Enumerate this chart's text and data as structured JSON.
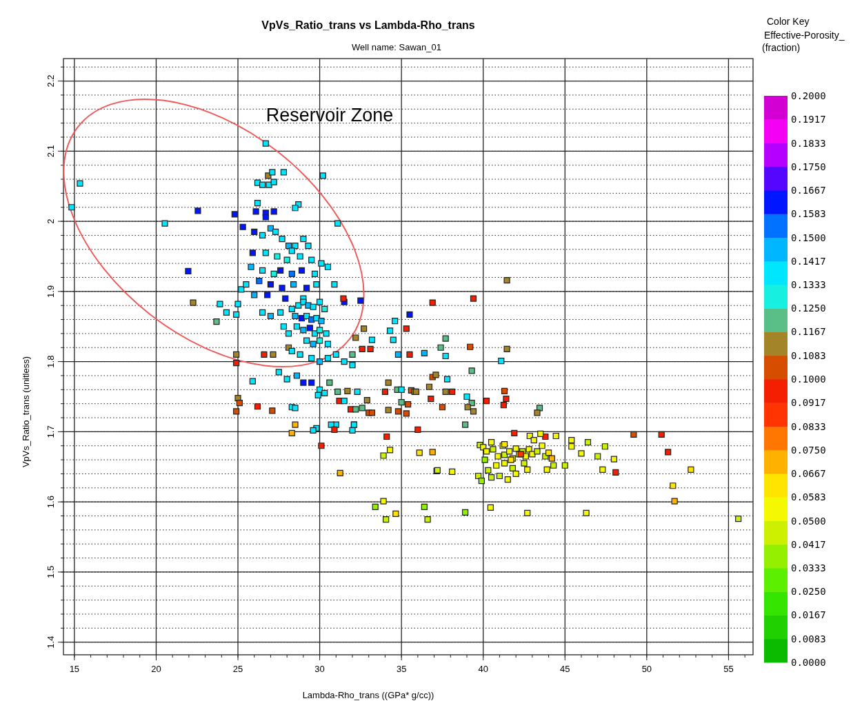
{
  "chart_data": {
    "type": "scatter",
    "title": "VpVs_Ratio_trans vs Lambda-Rho_trans",
    "subtitle": "Well name: Sawan_01",
    "xlabel": "Lambda-Rho_trans ((GPa* g/cc))",
    "ylabel": "VpVs_Ratio_trans (unitless)",
    "legend_title": "Color Key",
    "clabel": "Effective-Porosity_ (fraction)",
    "annotations": [
      "Reservoir Zone"
    ],
    "marker": "square",
    "grid": true,
    "xlim": [
      14.33,
      56.5
    ],
    "xticks": [
      15,
      20,
      25,
      30,
      35,
      40,
      45,
      50,
      55
    ],
    "ylim": [
      1.382,
      2.232
    ],
    "yticks": [
      1.4,
      1.5,
      1.6,
      1.7,
      1.8,
      1.9,
      2,
      2.1,
      2.2
    ],
    "clim": [
      0,
      0.2
    ],
    "cticks": [
      {
        "value": 0,
        "label": "0.0000"
      },
      {
        "value": 0.00833,
        "label": "0.0083"
      },
      {
        "value": 0.01667,
        "label": "0.0167"
      },
      {
        "value": 0.025,
        "label": "0.0250"
      },
      {
        "value": 0.03333,
        "label": "0.0333"
      },
      {
        "value": 0.04167,
        "label": "0.0417"
      },
      {
        "value": 0.05,
        "label": "0.0500"
      },
      {
        "value": 0.05833,
        "label": "0.0583"
      },
      {
        "value": 0.06667,
        "label": "0.0667"
      },
      {
        "value": 0.075,
        "label": "0.0750"
      },
      {
        "value": 0.08333,
        "label": "0.0833"
      },
      {
        "value": 0.09167,
        "label": "0.0917"
      },
      {
        "value": 0.1,
        "label": "0.1000"
      },
      {
        "value": 0.10833,
        "label": "0.1083"
      },
      {
        "value": 0.11667,
        "label": "0.1167"
      },
      {
        "value": 0.125,
        "label": "0.1250"
      },
      {
        "value": 0.13333,
        "label": "0.1333"
      },
      {
        "value": 0.14167,
        "label": "0.1417"
      },
      {
        "value": 0.15,
        "label": "0.1500"
      },
      {
        "value": 0.15833,
        "label": "0.1583"
      },
      {
        "value": 0.16667,
        "label": "0.1667"
      },
      {
        "value": 0.175,
        "label": "0.1750"
      },
      {
        "value": 0.18333,
        "label": "0.1833"
      },
      {
        "value": 0.19167,
        "label": "0.1917"
      },
      {
        "value": 0.2,
        "label": "0.2000"
      }
    ],
    "series": [
      {
        "x": [
          14.83,
          15.34,
          20.53,
          22.55,
          21.96,
          22.26,
          23.69,
          23.9,
          24.3,
          24.9,
          25.0,
          25.2,
          24.9,
          24.9,
          25.0,
          25.1,
          24.9,
          25.9,
          26.2,
          26.7,
          26.85,
          27.1,
          27.8,
          26.2,
          26.5,
          26.9,
          27.2,
          30.2,
          26.2,
          28.7,
          28.5,
          24.8,
          26.7,
          26.7,
          26.1,
          27.2,
          31.1,
          25.3,
          26.0,
          26.5,
          27.0,
          27.3,
          27.7,
          28.1,
          28.5,
          29.0,
          29.3,
          28.3,
          25.9,
          26.7,
          27.4,
          28.0,
          28.8,
          29.5,
          30.1,
          25.8,
          26.5,
          27.2,
          27.6,
          28.3,
          28.9,
          29.7,
          30.5,
          25.5,
          26.3,
          27.0,
          27.7,
          28.4,
          29.2,
          29.8,
          30.9,
          26.0,
          26.8,
          27.9,
          29.0,
          31.5,
          28.3,
          28.7,
          29.0,
          29.3,
          29.6,
          30.0,
          30.3,
          28.5,
          28.9,
          29.2,
          29.5,
          29.8,
          30.1,
          28.6,
          29.0,
          29.4,
          29.7,
          30.0,
          30.4,
          29.2,
          29.6,
          30.0,
          30.5,
          27.6,
          27.0,
          26.5,
          27.8,
          28.1,
          28.1,
          28.3,
          28.8,
          29.5,
          30.0,
          30.5,
          31.0,
          31.5,
          32.0,
          27.5,
          28.0,
          28.6,
          29.0,
          29.5,
          30.0,
          30.3,
          28.3,
          29.8,
          31.0,
          32.1,
          29.9,
          31.45,
          39.4,
          36.9,
          32.5,
          35.5,
          35.3,
          32.7,
          32.2,
          34.6,
          34.3,
          33.2,
          34.5,
          37.7,
          37.4,
          39.2,
          35.5,
          34.8,
          36.4,
          37.7,
          33.1,
          32.6,
          32.0,
          26.6,
          27.15,
          39.3,
          37.8,
          36.9,
          37.1,
          36.7,
          38.1,
          37.7,
          36.8,
          37.5,
          39.0,
          39.3,
          39.4,
          39.05,
          38.9,
          40.2,
          34.0,
          34.75,
          35.0,
          35.6,
          35.8,
          35.9,
          34.2,
          35.0,
          35.4,
          34.8,
          35.3,
          34.2,
          33.0,
          33.2,
          31.9,
          32.2,
          32.6,
          32.9,
          31.7,
          32.3,
          31.2,
          31.5,
          31.1,
          30.6,
          28.5,
          27.1,
          28.5,
          28.3,
          29.6,
          30.7,
          30.9,
          32.0,
          32.1,
          30.1,
          34.1,
          36.0,
          34.3,
          33.9,
          36.1,
          36.9,
          31.25,
          37.15,
          38.1,
          41.45,
          41.45,
          41.1,
          41.3,
          41.4,
          41.25,
          43.45,
          43.3,
          41.9,
          43.8,
          49.2,
          50.9,
          51.3,
          48.1,
          52.7,
          51.6,
          51.7,
          55.6,
          47.3,
          48.0,
          47.45,
          47.0,
          46.4,
          46.0,
          45.4,
          45.4,
          44.45,
          45.0,
          43.9,
          42.7,
          43.5,
          42.85,
          43.1,
          36.4,
          36.6,
          38.9,
          40.45,
          42.7,
          46.3,
          33.4,
          33.9,
          34.65,
          34.05,
          39.7,
          39.8,
          37.2,
          40.0,
          40.2,
          40.6,
          40.9,
          41.2,
          41.3,
          41.6,
          41.8,
          42.0,
          42.2,
          42.4,
          42.6,
          42.8,
          43.0,
          43.3,
          43.6,
          43.8,
          44.0,
          44.2,
          44.3,
          40.3,
          40.8,
          41.3,
          41.8,
          42.0,
          42.5,
          40.5,
          41.0,
          41.5,
          41.7,
          41.3,
          42.3,
          40.1,
          39.9,
          40.5
        ],
        "values": [
          2.02,
          2.054,
          1.997,
          2.015,
          1.929,
          1.884,
          1.857,
          1.882,
          1.87,
          1.867,
          1.882,
          1.903,
          1.81,
          1.798,
          1.748,
          1.741,
          1.729,
          1.772,
          1.736,
          2.111,
          2.065,
          2.07,
          2.07,
          2.055,
          2.052,
          2.052,
          2.056,
          2.065,
          2.026,
          2.024,
          2.019,
          2.01,
          2.012,
          2.006,
          2.014,
          2.014,
          1.997,
          1.992,
          1.985,
          1.98,
          1.99,
          1.985,
          1.975,
          1.965,
          1.965,
          1.975,
          1.965,
          1.958,
          1.955,
          1.955,
          1.95,
          1.945,
          1.95,
          1.945,
          1.94,
          1.935,
          1.93,
          1.925,
          1.93,
          1.925,
          1.93,
          1.925,
          1.935,
          1.91,
          1.915,
          1.91,
          1.905,
          1.91,
          1.905,
          1.91,
          1.91,
          1.895,
          1.895,
          1.89,
          1.89,
          1.885,
          1.875,
          1.88,
          1.885,
          1.88,
          1.878,
          1.885,
          1.875,
          1.865,
          1.862,
          1.865,
          1.86,
          1.862,
          1.858,
          1.85,
          1.845,
          1.848,
          1.84,
          1.845,
          1.84,
          1.83,
          1.825,
          1.83,
          1.825,
          1.87,
          1.865,
          1.87,
          1.85,
          1.84,
          1.82,
          1.815,
          1.81,
          1.805,
          1.8,
          1.805,
          1.81,
          1.8,
          1.795,
          1.785,
          1.775,
          1.78,
          1.77,
          1.77,
          1.76,
          1.755,
          1.735,
          1.705,
          1.71,
          1.71,
          1.752,
          1.89,
          1.89,
          1.884,
          1.887,
          1.867,
          1.847,
          1.847,
          1.834,
          1.858,
          1.844,
          1.831,
          1.831,
          1.833,
          1.82,
          1.821,
          1.81,
          1.81,
          1.812,
          1.808,
          1.818,
          1.818,
          1.81,
          1.81,
          1.81,
          1.787,
          1.775,
          1.778,
          1.781,
          1.764,
          1.757,
          1.757,
          1.747,
          1.735,
          1.75,
          1.741,
          1.729,
          1.735,
          1.71,
          1.744,
          1.757,
          1.76,
          1.76,
          1.759,
          1.757,
          1.757,
          1.77,
          1.742,
          1.739,
          1.729,
          1.726,
          1.731,
          1.727,
          1.727,
          1.732,
          1.732,
          1.734,
          1.745,
          1.758,
          1.757,
          1.744,
          1.744,
          1.757,
          1.77,
          1.734,
          1.73,
          1.71,
          1.698,
          1.702,
          1.71,
          1.703,
          1.702,
          1.71,
          1.68,
          1.693,
          1.703,
          1.674,
          1.666,
          1.67,
          1.671,
          1.641,
          1.644,
          1.643,
          1.916,
          1.818,
          1.801,
          1.758,
          1.747,
          1.738,
          1.734,
          1.727,
          1.698,
          1.693,
          1.696,
          1.696,
          1.671,
          1.642,
          1.646,
          1.623,
          1.601,
          1.576,
          1.646,
          1.661,
          1.679,
          1.665,
          1.685,
          1.669,
          1.679,
          1.688,
          1.694,
          1.652,
          1.646,
          1.646,
          1.697,
          1.694,
          1.688,
          1.593,
          1.575,
          1.585,
          1.592,
          1.584,
          1.584,
          1.593,
          1.601,
          1.583,
          1.575,
          1.637,
          1.681,
          1.645,
          1.678,
          1.672,
          1.675,
          1.665,
          1.68,
          1.667,
          1.672,
          1.662,
          1.676,
          1.668,
          1.672,
          1.665,
          1.675,
          1.668,
          1.672,
          1.68,
          1.665,
          1.67,
          1.662,
          1.652,
          1.645,
          1.652,
          1.655,
          1.648,
          1.64,
          1.655,
          1.635,
          1.637,
          1.632,
          1.66,
          1.682,
          1.668,
          1.66,
          1.63,
          1.685
        ],
        "cvalues": [
          0.14,
          0.14,
          0.14,
          0.16,
          0.16,
          0.115,
          0.118,
          0.14,
          0.14,
          0.14,
          0.14,
          0.14,
          0.11,
          0.095,
          0.11,
          0.1,
          0.108,
          0.14,
          0.092,
          0.14,
          0.115,
          0.14,
          0.135,
          0.14,
          0.14,
          0.14,
          0.14,
          0.14,
          0.14,
          0.14,
          0.14,
          0.16,
          0.16,
          0.165,
          0.16,
          0.16,
          0.14,
          0.165,
          0.16,
          0.14,
          0.15,
          0.14,
          0.14,
          0.15,
          0.14,
          0.14,
          0.135,
          0.14,
          0.165,
          0.14,
          0.13,
          0.13,
          0.14,
          0.14,
          0.135,
          0.15,
          0.14,
          0.13,
          0.16,
          0.155,
          0.16,
          0.14,
          0.135,
          0.14,
          0.155,
          0.16,
          0.165,
          0.15,
          0.16,
          0.14,
          0.14,
          0.15,
          0.16,
          0.16,
          0.135,
          0.16,
          0.14,
          0.135,
          0.14,
          0.15,
          0.14,
          0.135,
          0.13,
          0.15,
          0.16,
          0.14,
          0.155,
          0.14,
          0.145,
          0.14,
          0.15,
          0.16,
          0.14,
          0.13,
          0.14,
          0.14,
          0.15,
          0.13,
          0.14,
          0.14,
          0.15,
          0.14,
          0.14,
          0.14,
          0.115,
          0.14,
          0.14,
          0.14,
          0.15,
          0.14,
          0.14,
          0.135,
          0.14,
          0.14,
          0.14,
          0.15,
          0.16,
          0.16,
          0.14,
          0.14,
          0.14,
          0.14,
          0.14,
          0.14,
          0.14,
          0.095,
          0.095,
          0.095,
          0.16,
          0.16,
          0.095,
          0.11,
          0.115,
          0.135,
          0.135,
          0.135,
          0.14,
          0.122,
          0.122,
          0.1,
          0.095,
          0.15,
          0.15,
          0.14,
          0.098,
          0.095,
          0.12,
          0.095,
          0.11,
          0.12,
          0.135,
          0.1,
          0.11,
          0.115,
          0.095,
          0.11,
          0.095,
          0.1,
          0.135,
          0.12,
          0.11,
          0.11,
          0.12,
          0.098,
          0.095,
          0.122,
          0.14,
          0.1,
          0.11,
          0.11,
          0.115,
          0.12,
          0.1,
          0.1,
          0.1,
          0.11,
          0.1,
          0.1,
          0.095,
          0.12,
          0.12,
          0.11,
          0.11,
          0.135,
          0.095,
          0.135,
          0.122,
          0.122,
          0.135,
          0.1,
          0.075,
          0.07,
          0.135,
          0.135,
          0.095,
          0.135,
          0.135,
          0.092,
          0.092,
          0.098,
          0.058,
          0.045,
          0.06,
          0.068,
          0.07,
          0.045,
          0.058,
          0.115,
          0.11,
          0.14,
          0.108,
          0.098,
          0.095,
          0.122,
          0.11,
          0.092,
          0.098,
          0.1,
          0.092,
          0.092,
          0.092,
          0.065,
          0.062,
          0.07,
          0.045,
          0.055,
          0.055,
          0.045,
          0.045,
          0.045,
          0.058,
          0.055,
          0.055,
          0.055,
          0.045,
          0.055,
          0.055,
          0.055,
          0.055,
          0.055,
          0.035,
          0.045,
          0.035,
          0.055,
          0.058,
          0.058,
          0.035,
          0.055,
          0.06,
          0.045,
          0.045,
          0.045,
          0.045,
          0.05,
          0.055,
          0.045,
          0.05,
          0.055,
          0.045,
          0.05,
          0.055,
          0.05,
          0.06,
          0.045,
          0.05,
          0.055,
          0.05,
          0.045,
          0.05,
          0.045,
          0.065,
          0.07,
          0.045,
          0.045,
          0.05,
          0.05,
          0.045,
          0.05,
          0.045,
          0.045,
          0.045,
          0.05,
          0.065,
          0.06,
          0.085,
          0.04,
          0.04,
          0.05
        ]
      }
    ]
  }
}
